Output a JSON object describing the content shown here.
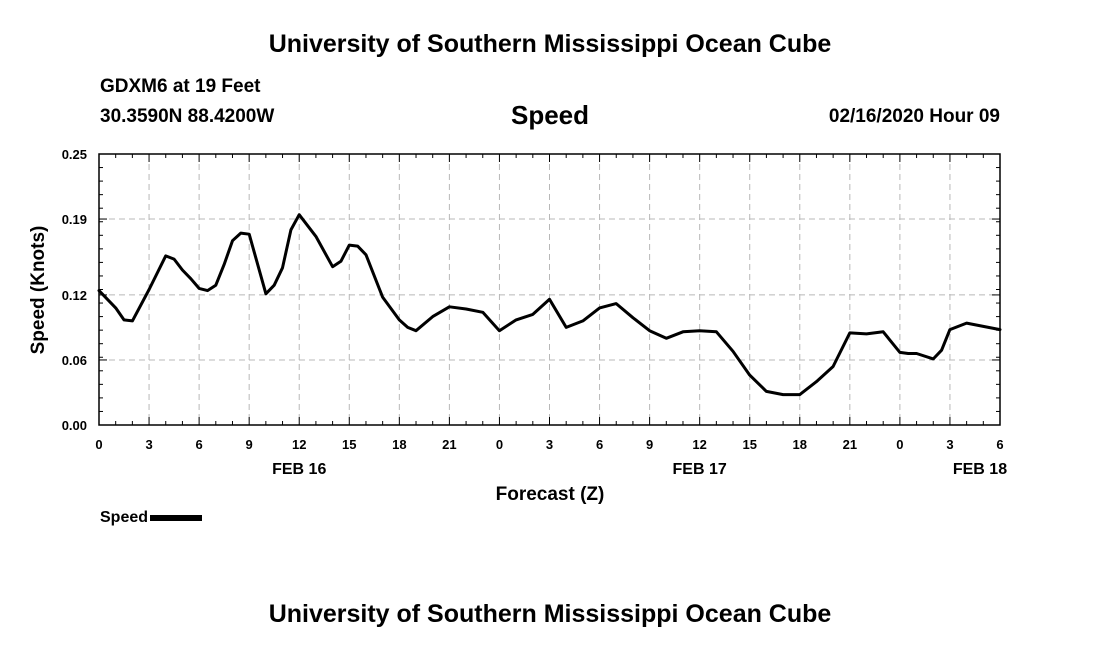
{
  "header": {
    "title": "University of Southern Mississippi Ocean Cube",
    "station": "GDXM6 at 19 Feet",
    "coordinates": "30.3590N 88.4200W",
    "timestamp": "02/16/2020 Hour 09"
  },
  "footer": {
    "title": "University of Southern Mississippi Ocean Cube"
  },
  "legend": {
    "label": "Speed",
    "color": "#000000"
  },
  "chart_data": {
    "type": "line",
    "title": "Speed",
    "xlabel": "Forecast (Z)",
    "ylabel": "Speed (Knots)",
    "xlim": [
      0,
      54
    ],
    "ylim": [
      0,
      0.25
    ],
    "grid": true,
    "y_ticks": [
      0.0,
      0.06,
      0.12,
      0.19,
      0.25
    ],
    "y_tick_labels": [
      "0.00",
      "0.06",
      "0.12",
      "0.19",
      "0.25"
    ],
    "x_ticks": [
      0,
      3,
      6,
      9,
      12,
      15,
      18,
      21,
      24,
      27,
      30,
      33,
      36,
      39,
      42,
      45,
      48,
      51,
      54
    ],
    "x_tick_labels": [
      "0",
      "3",
      "6",
      "9",
      "12",
      "15",
      "18",
      "21",
      "0",
      "3",
      "6",
      "9",
      "12",
      "15",
      "18",
      "21",
      "0",
      "3",
      "6"
    ],
    "date_labels": [
      {
        "x": 12,
        "label": "FEB 16"
      },
      {
        "x": 36,
        "label": "FEB 17"
      },
      {
        "x": 52.8,
        "label": "FEB 18"
      }
    ],
    "series": [
      {
        "name": "Speed",
        "color": "#000000",
        "x": [
          0,
          1,
          1.5,
          2,
          3,
          4,
          4.5,
          5,
          5.5,
          6,
          6.5,
          7,
          7.5,
          8,
          8.5,
          9,
          10,
          10.5,
          11,
          11.5,
          12,
          13,
          14,
          14.5,
          15,
          15.5,
          16,
          17,
          18,
          18.5,
          19,
          20,
          21,
          22,
          23,
          24,
          25,
          26,
          27,
          28,
          29,
          30,
          31,
          32,
          33,
          34,
          35,
          36,
          37,
          38,
          39,
          40,
          41,
          42,
          43,
          44,
          45,
          46,
          47,
          48,
          48.5,
          49,
          50,
          50.5,
          51,
          52,
          53,
          54
        ],
        "values": [
          0.124,
          0.108,
          0.097,
          0.096,
          0.125,
          0.156,
          0.153,
          0.143,
          0.135,
          0.126,
          0.124,
          0.129,
          0.148,
          0.17,
          0.177,
          0.176,
          0.121,
          0.129,
          0.145,
          0.18,
          0.194,
          0.174,
          0.146,
          0.151,
          0.166,
          0.165,
          0.157,
          0.118,
          0.097,
          0.09,
          0.087,
          0.1,
          0.109,
          0.107,
          0.104,
          0.087,
          0.097,
          0.102,
          0.116,
          0.09,
          0.096,
          0.108,
          0.112,
          0.099,
          0.087,
          0.08,
          0.086,
          0.087,
          0.086,
          0.068,
          0.046,
          0.031,
          0.028,
          0.028,
          0.04,
          0.054,
          0.085,
          0.084,
          0.086,
          0.067,
          0.066,
          0.066,
          0.061,
          0.069,
          0.088,
          0.094,
          0.091,
          0.088
        ]
      }
    ]
  }
}
